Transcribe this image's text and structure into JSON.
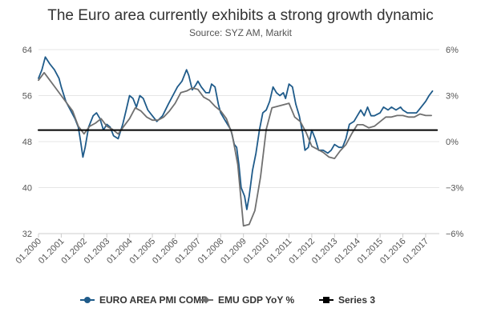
{
  "chart_data": {
    "type": "line",
    "title": "The Euro area currently exhibits a strong growth dynamic",
    "subtitle": "Source: SYZ AM, Markit",
    "x_labels": [
      "01.2000",
      "01.2001",
      "01.2002",
      "01.2003",
      "01.2004",
      "01.2005",
      "01.2006",
      "01.2007",
      "01.2008",
      "01.2009",
      "01.2010",
      "01.2011",
      "01.2012",
      "01.2013",
      "01.2014",
      "01.2015",
      "01.2016",
      "01.2017"
    ],
    "y_left": {
      "min": 32,
      "max": 64,
      "ticks": [
        32,
        40,
        48,
        56,
        64
      ],
      "labels": [
        "32",
        "40",
        "48",
        "56",
        "64"
      ]
    },
    "y_right": {
      "min": -6,
      "max": 6,
      "ticks": [
        -6,
        -3,
        0,
        3,
        6
      ],
      "labels": [
        "−6%",
        "−3%",
        "0%",
        "3%",
        "6%"
      ]
    },
    "grid": true,
    "legend_position": "bottom",
    "series": [
      {
        "name": "EURO AREA PMI COMP",
        "axis": "left",
        "color": "#1f5b8a",
        "marker": "circle",
        "points": [
          [
            2000.0,
            59.0
          ],
          [
            2000.15,
            60.5
          ],
          [
            2000.3,
            62.7
          ],
          [
            2000.5,
            61.5
          ],
          [
            2000.7,
            60.5
          ],
          [
            2000.9,
            59.0
          ],
          [
            2001.0,
            57.5
          ],
          [
            2001.2,
            55.0
          ],
          [
            2001.4,
            53.5
          ],
          [
            2001.6,
            52.0
          ],
          [
            2001.75,
            50.5
          ],
          [
            2001.85,
            48.0
          ],
          [
            2001.95,
            45.3
          ],
          [
            2002.05,
            47.0
          ],
          [
            2002.2,
            50.5
          ],
          [
            2002.4,
            52.5
          ],
          [
            2002.55,
            53.0
          ],
          [
            2002.7,
            52.0
          ],
          [
            2002.85,
            50.0
          ],
          [
            2003.0,
            51.0
          ],
          [
            2003.15,
            50.5
          ],
          [
            2003.3,
            49.0
          ],
          [
            2003.5,
            48.5
          ],
          [
            2003.7,
            51.0
          ],
          [
            2003.85,
            53.5
          ],
          [
            2004.0,
            56.0
          ],
          [
            2004.15,
            55.5
          ],
          [
            2004.3,
            54.0
          ],
          [
            2004.45,
            56.0
          ],
          [
            2004.6,
            55.5
          ],
          [
            2004.8,
            53.5
          ],
          [
            2005.0,
            52.5
          ],
          [
            2005.2,
            51.5
          ],
          [
            2005.45,
            52.5
          ],
          [
            2005.7,
            54.5
          ],
          [
            2005.9,
            56.0
          ],
          [
            2006.1,
            57.5
          ],
          [
            2006.3,
            58.5
          ],
          [
            2006.5,
            60.5
          ],
          [
            2006.6,
            59.5
          ],
          [
            2006.75,
            57.0
          ],
          [
            2006.9,
            57.8
          ],
          [
            2007.0,
            58.5
          ],
          [
            2007.15,
            57.5
          ],
          [
            2007.35,
            56.5
          ],
          [
            2007.5,
            56.5
          ],
          [
            2007.6,
            58.0
          ],
          [
            2007.75,
            57.5
          ],
          [
            2007.9,
            54.5
          ],
          [
            2008.0,
            53.0
          ],
          [
            2008.15,
            52.0
          ],
          [
            2008.3,
            51.0
          ],
          [
            2008.45,
            50.0
          ],
          [
            2008.6,
            47.5
          ],
          [
            2008.7,
            47.0
          ],
          [
            2008.8,
            44.0
          ],
          [
            2008.9,
            40.0
          ],
          [
            2009.05,
            38.5
          ],
          [
            2009.15,
            36.2
          ],
          [
            2009.25,
            38.5
          ],
          [
            2009.4,
            43.0
          ],
          [
            2009.55,
            46.0
          ],
          [
            2009.7,
            50.0
          ],
          [
            2009.85,
            53.0
          ],
          [
            2010.0,
            53.5
          ],
          [
            2010.15,
            55.0
          ],
          [
            2010.3,
            57.5
          ],
          [
            2010.45,
            56.5
          ],
          [
            2010.6,
            56.0
          ],
          [
            2010.75,
            56.5
          ],
          [
            2010.85,
            55.5
          ],
          [
            2011.0,
            58.0
          ],
          [
            2011.15,
            57.5
          ],
          [
            2011.3,
            54.5
          ],
          [
            2011.45,
            52.5
          ],
          [
            2011.6,
            49.5
          ],
          [
            2011.7,
            46.5
          ],
          [
            2011.85,
            47.0
          ],
          [
            2012.0,
            50.0
          ],
          [
            2012.15,
            48.5
          ],
          [
            2012.3,
            46.5
          ],
          [
            2012.5,
            46.5
          ],
          [
            2012.7,
            46.0
          ],
          [
            2012.85,
            46.5
          ],
          [
            2013.0,
            47.5
          ],
          [
            2013.2,
            47.0
          ],
          [
            2013.35,
            47.0
          ],
          [
            2013.5,
            48.5
          ],
          [
            2013.65,
            51.0
          ],
          [
            2013.85,
            51.5
          ],
          [
            2014.0,
            52.5
          ],
          [
            2014.15,
            53.5
          ],
          [
            2014.3,
            52.5
          ],
          [
            2014.45,
            54.0
          ],
          [
            2014.6,
            52.5
          ],
          [
            2014.75,
            52.5
          ],
          [
            2015.0,
            53.0
          ],
          [
            2015.15,
            54.0
          ],
          [
            2015.35,
            53.5
          ],
          [
            2015.5,
            54.0
          ],
          [
            2015.7,
            53.5
          ],
          [
            2015.9,
            54.0
          ],
          [
            2016.0,
            53.5
          ],
          [
            2016.2,
            53.0
          ],
          [
            2016.4,
            53.0
          ],
          [
            2016.6,
            53.0
          ],
          [
            2016.8,
            54.0
          ],
          [
            2017.0,
            55.0
          ],
          [
            2017.15,
            56.0
          ],
          [
            2017.3,
            56.8
          ]
        ]
      },
      {
        "name": "EMU GDP YoY %",
        "axis": "right",
        "color": "#707070",
        "marker": "diamond",
        "points": [
          [
            2000.0,
            4.0
          ],
          [
            2000.25,
            4.5
          ],
          [
            2000.5,
            4.0
          ],
          [
            2000.75,
            3.5
          ],
          [
            2001.0,
            3.0
          ],
          [
            2001.25,
            2.5
          ],
          [
            2001.5,
            2.0
          ],
          [
            2001.75,
            1.0
          ],
          [
            2002.0,
            0.5
          ],
          [
            2002.25,
            1.0
          ],
          [
            2002.5,
            1.2
          ],
          [
            2002.75,
            1.5
          ],
          [
            2003.0,
            1.0
          ],
          [
            2003.25,
            0.8
          ],
          [
            2003.5,
            0.5
          ],
          [
            2003.75,
            1.0
          ],
          [
            2004.0,
            1.5
          ],
          [
            2004.25,
            2.2
          ],
          [
            2004.5,
            2.0
          ],
          [
            2004.75,
            1.6
          ],
          [
            2005.0,
            1.4
          ],
          [
            2005.25,
            1.4
          ],
          [
            2005.5,
            1.6
          ],
          [
            2005.75,
            2.0
          ],
          [
            2006.0,
            2.5
          ],
          [
            2006.25,
            3.2
          ],
          [
            2006.5,
            3.3
          ],
          [
            2006.75,
            3.5
          ],
          [
            2007.0,
            3.4
          ],
          [
            2007.25,
            2.9
          ],
          [
            2007.5,
            2.7
          ],
          [
            2007.75,
            2.3
          ],
          [
            2008.0,
            2.0
          ],
          [
            2008.25,
            1.5
          ],
          [
            2008.5,
            0.5
          ],
          [
            2008.75,
            -1.5
          ],
          [
            2009.0,
            -5.5
          ],
          [
            2009.25,
            -5.4
          ],
          [
            2009.5,
            -4.5
          ],
          [
            2009.75,
            -2.3
          ],
          [
            2010.0,
            0.8
          ],
          [
            2010.25,
            2.2
          ],
          [
            2010.5,
            2.3
          ],
          [
            2010.75,
            2.4
          ],
          [
            2011.0,
            2.5
          ],
          [
            2011.25,
            1.6
          ],
          [
            2011.5,
            1.3
          ],
          [
            2011.75,
            0.6
          ],
          [
            2012.0,
            -0.3
          ],
          [
            2012.25,
            -0.5
          ],
          [
            2012.5,
            -0.7
          ],
          [
            2012.75,
            -1.0
          ],
          [
            2013.0,
            -1.1
          ],
          [
            2013.25,
            -0.6
          ],
          [
            2013.5,
            -0.2
          ],
          [
            2013.75,
            0.5
          ],
          [
            2014.0,
            1.1
          ],
          [
            2014.25,
            1.1
          ],
          [
            2014.5,
            0.9
          ],
          [
            2014.75,
            1.0
          ],
          [
            2015.0,
            1.3
          ],
          [
            2015.25,
            1.6
          ],
          [
            2015.5,
            1.6
          ],
          [
            2015.75,
            1.7
          ],
          [
            2016.0,
            1.7
          ],
          [
            2016.25,
            1.6
          ],
          [
            2016.5,
            1.6
          ],
          [
            2016.75,
            1.8
          ],
          [
            2017.0,
            1.7
          ],
          [
            2017.25,
            1.7
          ]
        ]
      },
      {
        "name": "Series 3",
        "axis": "left",
        "color": "#000000",
        "marker": "square",
        "points": [
          [
            2000.0,
            50
          ],
          [
            2017.5,
            50
          ]
        ]
      }
    ]
  }
}
